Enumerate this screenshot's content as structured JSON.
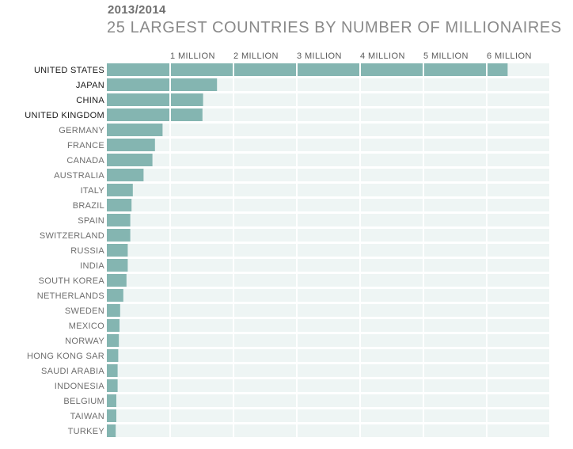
{
  "chart_data": {
    "type": "bar",
    "orientation": "horizontal",
    "subtitle": "2013/2014",
    "title": "25 LARGEST COUNTRIES BY NUMBER OF MILLIONAIRES",
    "xlim": [
      0,
      7
    ],
    "x_ticks": [
      {
        "value": 1,
        "label": "1 MILLION"
      },
      {
        "value": 2,
        "label": "2 MILLION"
      },
      {
        "value": 3,
        "label": "3 MILLION"
      },
      {
        "value": 4,
        "label": "4 MILLION"
      },
      {
        "value": 5,
        "label": "5 MILLION"
      },
      {
        "value": 6,
        "label": "6 MILLION"
      }
    ],
    "categories": [
      "UNITED STATES",
      "JAPAN",
      "CHINA",
      "UNITED KINGDOM",
      "GERMANY",
      "FRANCE",
      "CANADA",
      "AUSTRALIA",
      "ITALY",
      "BRAZIL",
      "SPAIN",
      "SWITZERLAND",
      "RUSSIA",
      "INDIA",
      "SOUTH KOREA",
      "NETHERLANDS",
      "SWEDEN",
      "MEXICO",
      "NORWAY",
      "HONG KONG SAR",
      "SAUDI ARABIA",
      "INDONESIA",
      "BELGIUM",
      "TAIWAN",
      "TURKEY"
    ],
    "values": [
      6.33,
      1.74,
      1.52,
      1.51,
      0.88,
      0.76,
      0.72,
      0.58,
      0.41,
      0.39,
      0.37,
      0.37,
      0.33,
      0.33,
      0.31,
      0.26,
      0.21,
      0.2,
      0.19,
      0.18,
      0.17,
      0.17,
      0.15,
      0.15,
      0.14
    ],
    "highlight": [
      "UNITED STATES",
      "JAPAN",
      "CHINA",
      "UNITED KINGDOM"
    ],
    "grid": true,
    "colors": {
      "bar": "#84b5b1",
      "track": "#eef5f4",
      "grid_line": "#ffffff",
      "label_highlight": "#1a1a1a",
      "label_normal": "#6e6e6e",
      "tick_label": "#5a5a5a"
    }
  }
}
